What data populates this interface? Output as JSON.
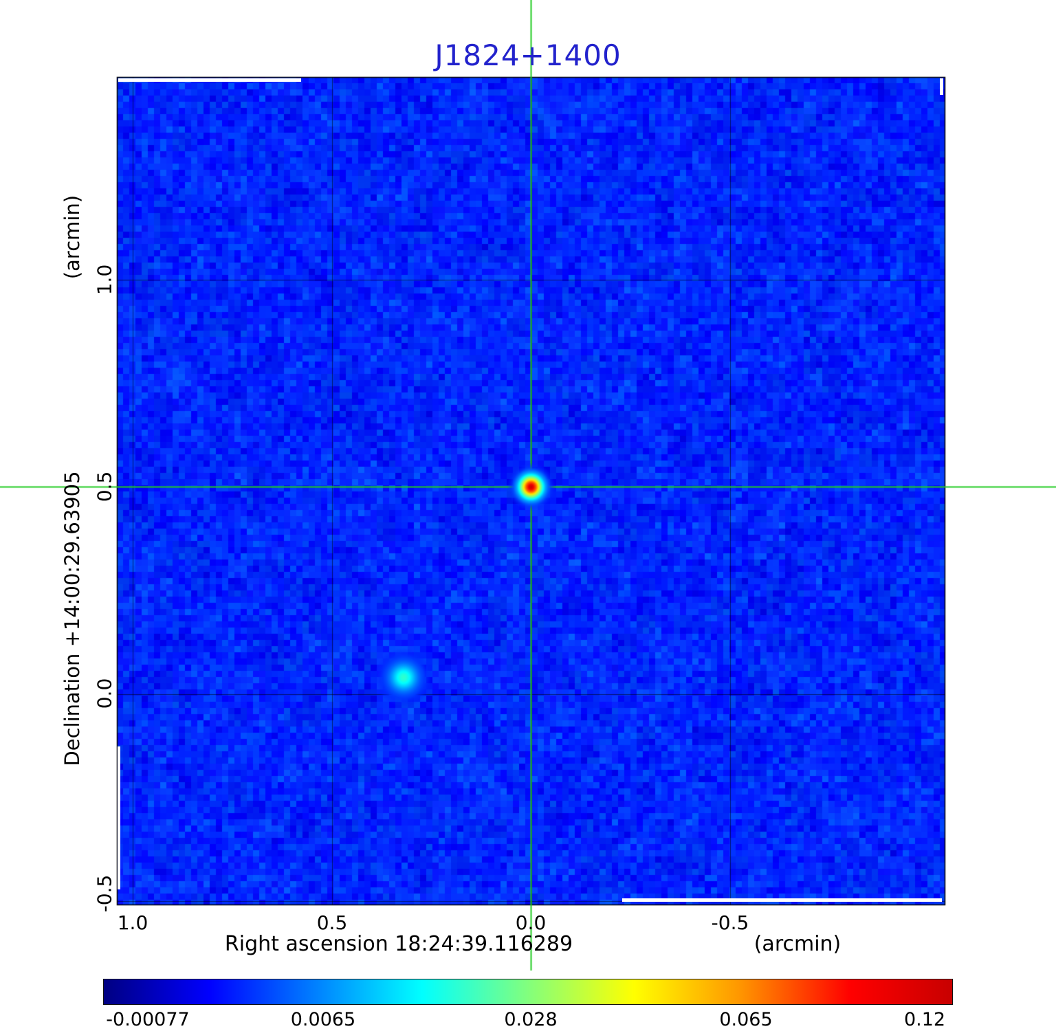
{
  "title": "J1824+1400",
  "colors": {
    "title": "#2222cc",
    "crosshair": "#22cc22",
    "grid": "#000000",
    "figure_background": "#ffffff",
    "map_base": "#0d3fd8"
  },
  "axes": {
    "y_unit_label": "(arcmin)",
    "y_axis_label": "Declination  +14:00:29.63905",
    "x_axis_label": "Right ascension  18:24:39.116289",
    "x_unit_label": "(arcmin)",
    "y_tick_labels": [
      "1.0",
      "0.5",
      "0.0",
      "-0.5"
    ],
    "x_tick_labels": [
      "1.0",
      "0.5",
      "0.0",
      "-0.5"
    ]
  },
  "colorbar": {
    "tick_labels": [
      "-0.00077",
      "0.0065",
      "0.028",
      "0.065",
      "0.12"
    ],
    "colormap": "jet"
  },
  "chart_data": {
    "type": "heatmap",
    "title": "J1824+1400",
    "xlabel": "Right ascension 18:24:39.116289 (arcmin)",
    "ylabel": "Declination +14:00:29.63905 (arcmin)",
    "x_range_arcmin": [
      1.04,
      -1.04
    ],
    "y_range_arcmin": [
      1.49,
      -0.51
    ],
    "x_gridlines_arcmin": [
      1.0,
      0.5,
      0.0,
      -0.5
    ],
    "y_gridlines_arcmin": [
      1.0,
      0.5,
      0.0,
      -0.5
    ],
    "crosshair_arcmin": {
      "x": 0.0,
      "y": 0.5
    },
    "intensity_min": -0.00077,
    "intensity_max": 0.12,
    "colorbar_ticks": [
      -0.00077,
      0.0065,
      0.028,
      0.065,
      0.12
    ],
    "colormap": "jet",
    "grid": true,
    "sources": [
      {
        "x_arcmin": 0.0,
        "y_arcmin": 0.5,
        "peak_intensity": 0.12,
        "sigma_arcmin": 0.019,
        "description": "bright point source at crosshair"
      },
      {
        "x_arcmin": 0.32,
        "y_arcmin": 0.04,
        "peak_intensity": 0.02,
        "sigma_arcmin": 0.023,
        "description": "faint diffuse source"
      }
    ]
  }
}
